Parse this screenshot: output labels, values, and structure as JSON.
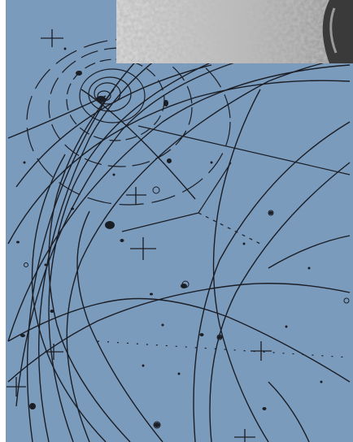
{
  "image": {
    "subject": "",
    "colors": {
      "background": "#7b9bbd",
      "left_margin": "#ffffff",
      "track_ink": "#1a1d24",
      "photo_light": "#d9d9d9",
      "photo_mid": "#a4a4a4",
      "photo_dark": "#3a3a3a"
    }
  }
}
